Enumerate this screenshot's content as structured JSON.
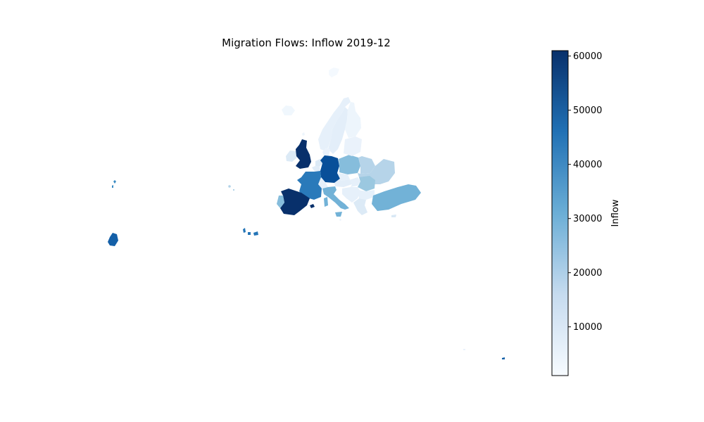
{
  "map": {
    "title": "Migration Flows: Inflow 2019-12",
    "colormap": "Blues",
    "colorbar": {
      "label": "Inflow",
      "min": 1000,
      "max": 61000,
      "ticks": [
        "10000",
        "20000",
        "30000",
        "40000",
        "50000",
        "60000"
      ],
      "low_color": "#f7fbff",
      "high_color": "#08306b"
    },
    "regions": [
      {
        "name": "Iceland",
        "value": 3000
      },
      {
        "name": "Norway",
        "value": 6000
      },
      {
        "name": "Sweden",
        "value": 7000
      },
      {
        "name": "Finland",
        "value": 4000
      },
      {
        "name": "Ireland",
        "value": 9000
      },
      {
        "name": "United Kingdom",
        "value": 61000
      },
      {
        "name": "Netherlands",
        "value": 9000
      },
      {
        "name": "Belgium",
        "value": 8000
      },
      {
        "name": "Germany",
        "value": 54000
      },
      {
        "name": "Denmark",
        "value": 5000
      },
      {
        "name": "Poland",
        "value": 27000
      },
      {
        "name": "Baltic states",
        "value": 5000
      },
      {
        "name": "Belarus",
        "value": 19000
      },
      {
        "name": "Ukraine",
        "value": 19000
      },
      {
        "name": "Czechia",
        "value": 6000
      },
      {
        "name": "Austria",
        "value": 7000
      },
      {
        "name": "Switzerland",
        "value": 6000
      },
      {
        "name": "France",
        "value": 44000
      },
      {
        "name": "Spain",
        "value": 61000
      },
      {
        "name": "Portugal",
        "value": 27000
      },
      {
        "name": "Italy",
        "value": 30000
      },
      {
        "name": "Hungary",
        "value": 6000
      },
      {
        "name": "Romania",
        "value": 24000
      },
      {
        "name": "Balkans",
        "value": 6000
      },
      {
        "name": "Bulgaria",
        "value": 6000
      },
      {
        "name": "Greece",
        "value": 9000
      },
      {
        "name": "Turkey",
        "value": 30000
      },
      {
        "name": "Cyprus",
        "value": 10000
      },
      {
        "name": "Madeira",
        "value": 20000
      },
      {
        "name": "Canary Islands",
        "value": 45000
      },
      {
        "name": "Azores",
        "value": 40000
      },
      {
        "name": "Balearic Islands",
        "value": 61000
      },
      {
        "name": "Malta",
        "value": 5000
      },
      {
        "name": "Svalbard",
        "value": 2000
      },
      {
        "name": "Faroe Islands",
        "value": 4000
      },
      {
        "name": "Reunion",
        "value": 50000
      },
      {
        "name": "Mayotte",
        "value": 5000
      }
    ]
  }
}
